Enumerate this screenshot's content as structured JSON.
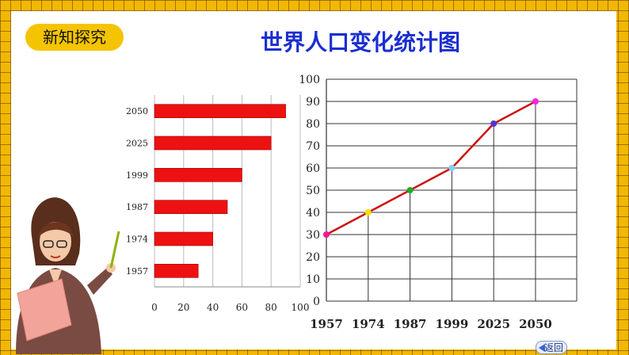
{
  "section_badge": "新知探究",
  "title": "世界人口变化统计图",
  "nav_back": "返回",
  "chart_data": [
    {
      "type": "bar",
      "orientation": "horizontal",
      "categories": [
        "2050",
        "2025",
        "1999",
        "1987",
        "1974",
        "1957"
      ],
      "values": [
        90,
        80,
        60,
        50,
        40,
        30
      ],
      "xlim": [
        0,
        100
      ],
      "xticks": [
        0,
        20,
        40,
        60,
        80,
        100
      ],
      "grid": true,
      "bar_color": "#ee1111"
    },
    {
      "type": "line",
      "categories": [
        "1957",
        "1974",
        "1987",
        "1999",
        "2025",
        "2050"
      ],
      "values": [
        30,
        40,
        50,
        60,
        80,
        90
      ],
      "ylim": [
        0,
        100
      ],
      "yticks": [
        0,
        10,
        20,
        30,
        40,
        50,
        60,
        70,
        80,
        90,
        100
      ],
      "grid": true,
      "line_color": "#cc1111",
      "marker_colors": [
        "#ff1493",
        "#ffdd00",
        "#22aa22",
        "#88ccff",
        "#5533cc",
        "#ff22dd"
      ]
    }
  ]
}
